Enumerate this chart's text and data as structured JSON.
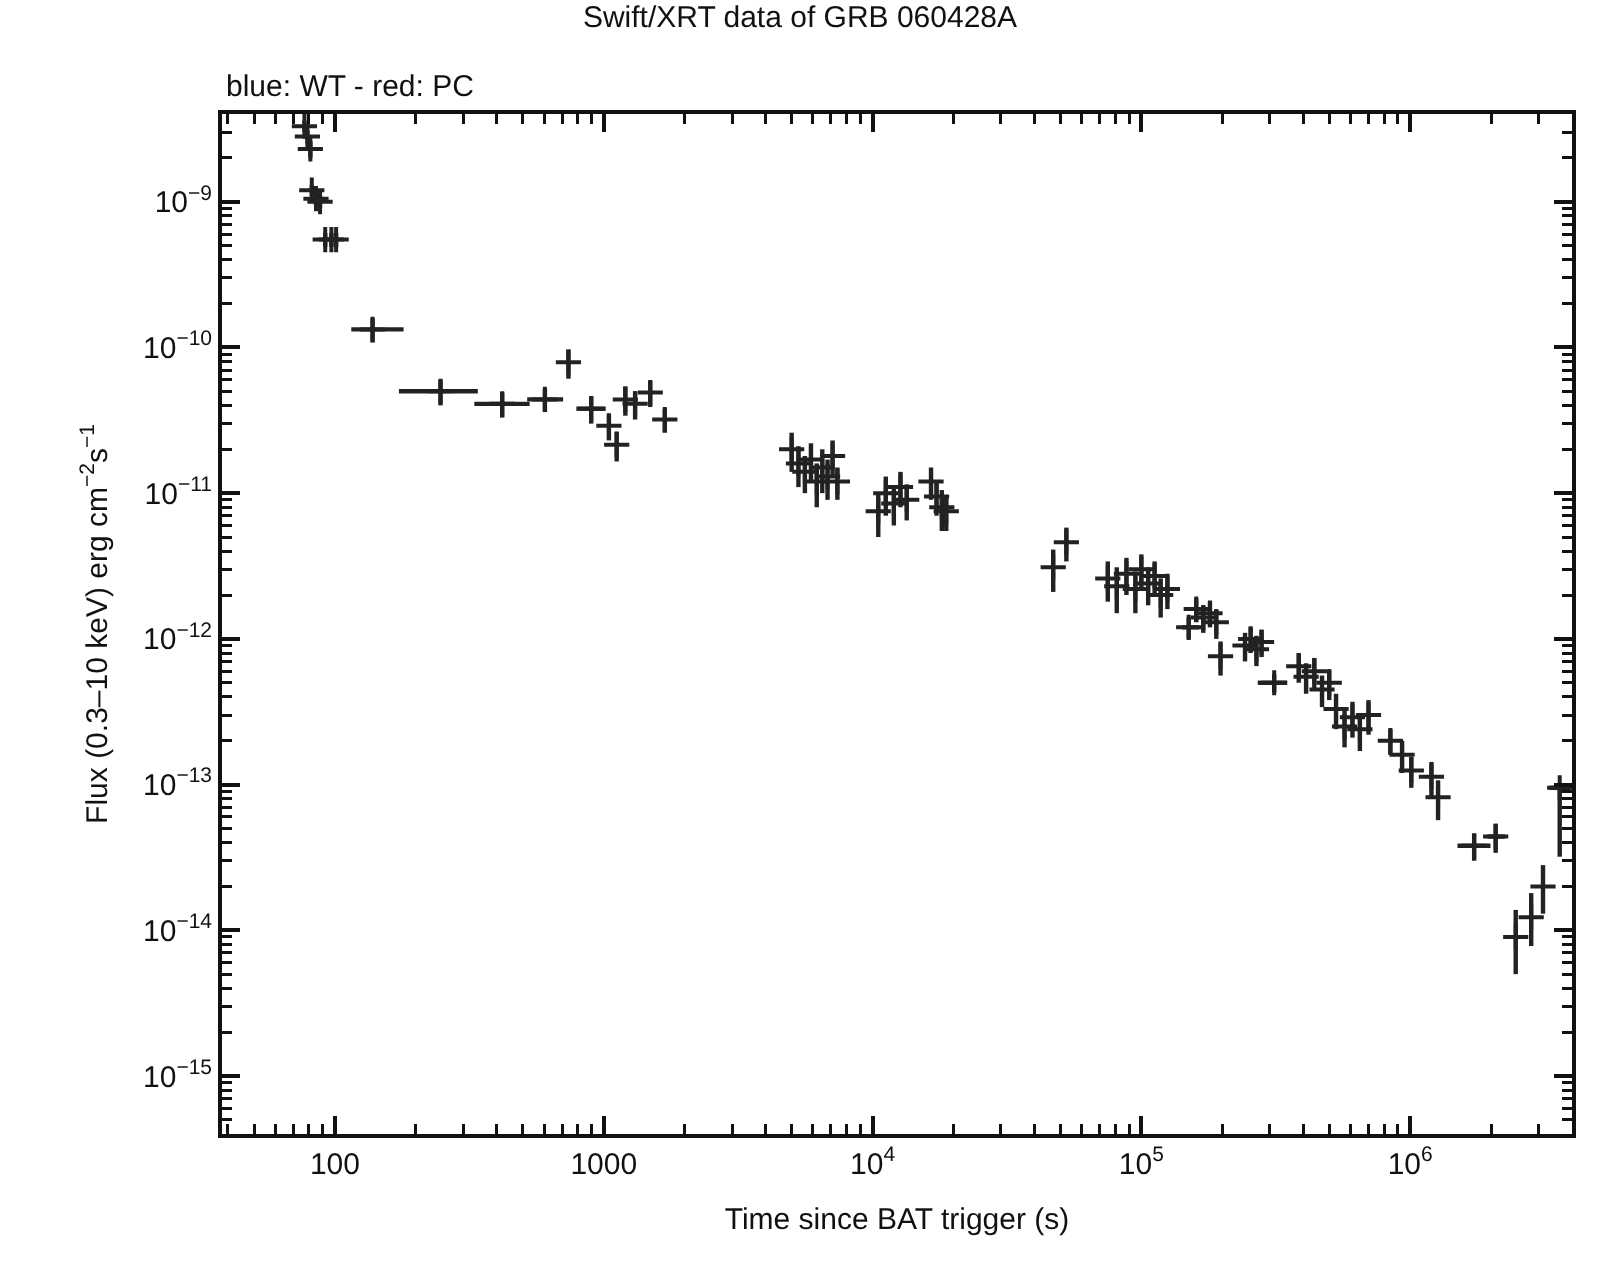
{
  "chart_data": {
    "type": "scatter",
    "title": "Swift/XRT data of GRB 060428A",
    "subtitle": "blue: WT - red: PC",
    "xlabel": "Time since BAT trigger (s)",
    "ylabel": "Flux (0.3–10 keV) erg cm$^{−2}$s$^{−1}$",
    "log": "xy",
    "marker": "cross",
    "xlim": [
      38,
      4000000
    ],
    "ylim": [
      4e-16,
      4e-09
    ],
    "xticks": [
      100,
      1000,
      {
        "value": 10000,
        "label": "10$^{4}$"
      },
      {
        "value": 100000,
        "label": "10$^{5}$"
      },
      {
        "value": 1000000,
        "label": "10$^{6}$"
      }
    ],
    "yticks": [
      {
        "value": 1e-15,
        "label": "10$^{−15}$"
      },
      {
        "value": 1e-14,
        "label": "10$^{−14}$"
      },
      {
        "value": 1e-13,
        "label": "10$^{−13}$"
      },
      {
        "value": 1e-12,
        "label": "10$^{−12}$"
      },
      {
        "value": 1e-11,
        "label": "10$^{−11}$"
      },
      {
        "value": 1e-10,
        "label": "10$^{−10}$"
      },
      {
        "value": 1e-09,
        "label": "10$^{−9}$"
      }
    ],
    "series": [
      {
        "color": "#222222",
        "x": [
          77,
          79,
          81,
          82,
          85,
          88,
          92,
          97,
          101,
          138,
          247,
          419,
          604,
          739,
          898,
          1045,
          1117,
          1203,
          1308,
          1489,
          1687,
          5000,
          5300,
          5600,
          5900,
          6200,
          6500,
          6800,
          7100,
          7400,
          10500,
          11200,
          12000,
          12700,
          13400,
          16500,
          17300,
          18100,
          18800,
          47000,
          52600,
          75000,
          81000,
          88000,
          95000,
          100000,
          106000,
          112000,
          118000,
          125000,
          150000,
          160000,
          170000,
          180000,
          190000,
          197000,
          243000,
          255000,
          268000,
          280000,
          312000,
          385000,
          410000,
          440000,
          470000,
          500000,
          530000,
          570000,
          610000,
          650000,
          700000,
          844000,
          933000,
          1010000,
          1200000,
          1270000,
          1730000,
          2080000,
          2470000,
          2820000,
          3120000,
          3600000
        ],
        "values": [
          3.3e-09,
          2.8e-09,
          2.3e-09,
          1.2e-09,
          1.05e-09,
          1e-09,
          5.5e-10,
          5.5e-10,
          5.5e-10,
          1.33e-10,
          5e-11,
          4.1e-11,
          4.4e-11,
          7.9e-11,
          3.8e-11,
          2.9e-11,
          2.15e-11,
          4.4e-11,
          4.1e-11,
          4.9e-11,
          3.2e-11,
          2e-11,
          1.6e-11,
          1.4e-11,
          1.7e-11,
          1.2e-11,
          1.5e-11,
          1.3e-11,
          1.8e-11,
          1.2e-11,
          7.5e-12,
          1e-11,
          8.5e-12,
          1.1e-11,
          9e-12,
          1.2e-11,
          9.5e-12,
          8e-12,
          7.5e-12,
          3.1e-12,
          4.6e-12,
          2.6e-12,
          2.3e-12,
          2.8e-12,
          2.2e-12,
          3e-12,
          2.4e-12,
          2.7e-12,
          2e-12,
          2.2e-12,
          1.2e-12,
          1.6e-12,
          1.4e-12,
          1.5e-12,
          1.3e-12,
          7.6e-13,
          9e-13,
          1e-12,
          8.5e-13,
          9.5e-13,
          5e-13,
          6.5e-13,
          5.5e-13,
          6e-13,
          4.5e-13,
          5e-13,
          3.3e-13,
          2.5e-13,
          2.9e-13,
          2.4e-13,
          3e-13,
          2e-13,
          1.6e-13,
          1.25e-13,
          1.13e-13,
          8.2e-14,
          3.8e-14,
          4.4e-14,
          9e-15,
          1.23e-14,
          2e-14,
          9.5e-14
        ],
        "errors": [
          3e-10,
          3e-10,
          3e-10,
          1e-10,
          1e-10,
          1e-10,
          6e-11,
          6e-11,
          6e-11,
          2.5e-11,
          1e-11,
          8e-12,
          8e-12,
          1.8e-11,
          8e-12,
          6e-12,
          5e-12,
          1e-11,
          9e-12,
          1e-11,
          6e-12,
          6e-12,
          5e-12,
          4e-12,
          5e-12,
          4e-12,
          5e-12,
          4e-12,
          5e-12,
          3e-12,
          2.5e-12,
          3e-12,
          2.5e-12,
          3e-12,
          2.5e-12,
          3e-12,
          2.5e-12,
          2.5e-12,
          2e-12,
          1e-12,
          1.2e-12,
          8e-13,
          8e-13,
          8e-13,
          7e-13,
          8e-13,
          7e-13,
          7e-13,
          6e-13,
          6e-13,
          2e-13,
          3e-13,
          3e-13,
          3e-13,
          3e-13,
          2e-13,
          2e-13,
          2e-13,
          2e-13,
          2e-13,
          7e-14,
          1.5e-13,
          1.3e-13,
          1.4e-13,
          1.1e-13,
          1.2e-13,
          9e-14,
          7e-14,
          8e-14,
          7e-14,
          8e-14,
          4e-14,
          4e-14,
          3e-14,
          3e-14,
          2.5e-14,
          8e-15,
          1e-14,
          [
            5e-15,
            1.38e-14
          ],
          [
            7.8e-15,
            1.8e-14
          ],
          [
            1.3e-14,
            2.8e-14
          ],
          [
            3.2e-14,
            9.5e-14
          ]
        ],
        "xerrors": [
          null,
          null,
          null,
          null,
          null,
          null,
          null,
          null,
          null,
          [
            115,
            180
          ],
          [
            173,
            340
          ],
          [
            330,
            530
          ],
          [
            519,
            706
          ],
          null,
          [
            791,
            1017
          ],
          null,
          null,
          null,
          null,
          null,
          null,
          null,
          null,
          null,
          null,
          null,
          null,
          null,
          null,
          null,
          null,
          null,
          null,
          null,
          null,
          null,
          null,
          null,
          null,
          null,
          null,
          null,
          null,
          null,
          null,
          null,
          null,
          null,
          null,
          null,
          [
            142000,
            164000
          ],
          null,
          null,
          null,
          null,
          null,
          null,
          null,
          null,
          null,
          [
            271000,
            349000
          ],
          null,
          null,
          null,
          null,
          null,
          null,
          null,
          null,
          null,
          null,
          null,
          null,
          null,
          null,
          null,
          [
            1500000,
            1990000
          ],
          [
            1940000,
            2250000
          ],
          null,
          null,
          null,
          [
            3300000,
            3950000
          ]
        ]
      }
    ]
  }
}
